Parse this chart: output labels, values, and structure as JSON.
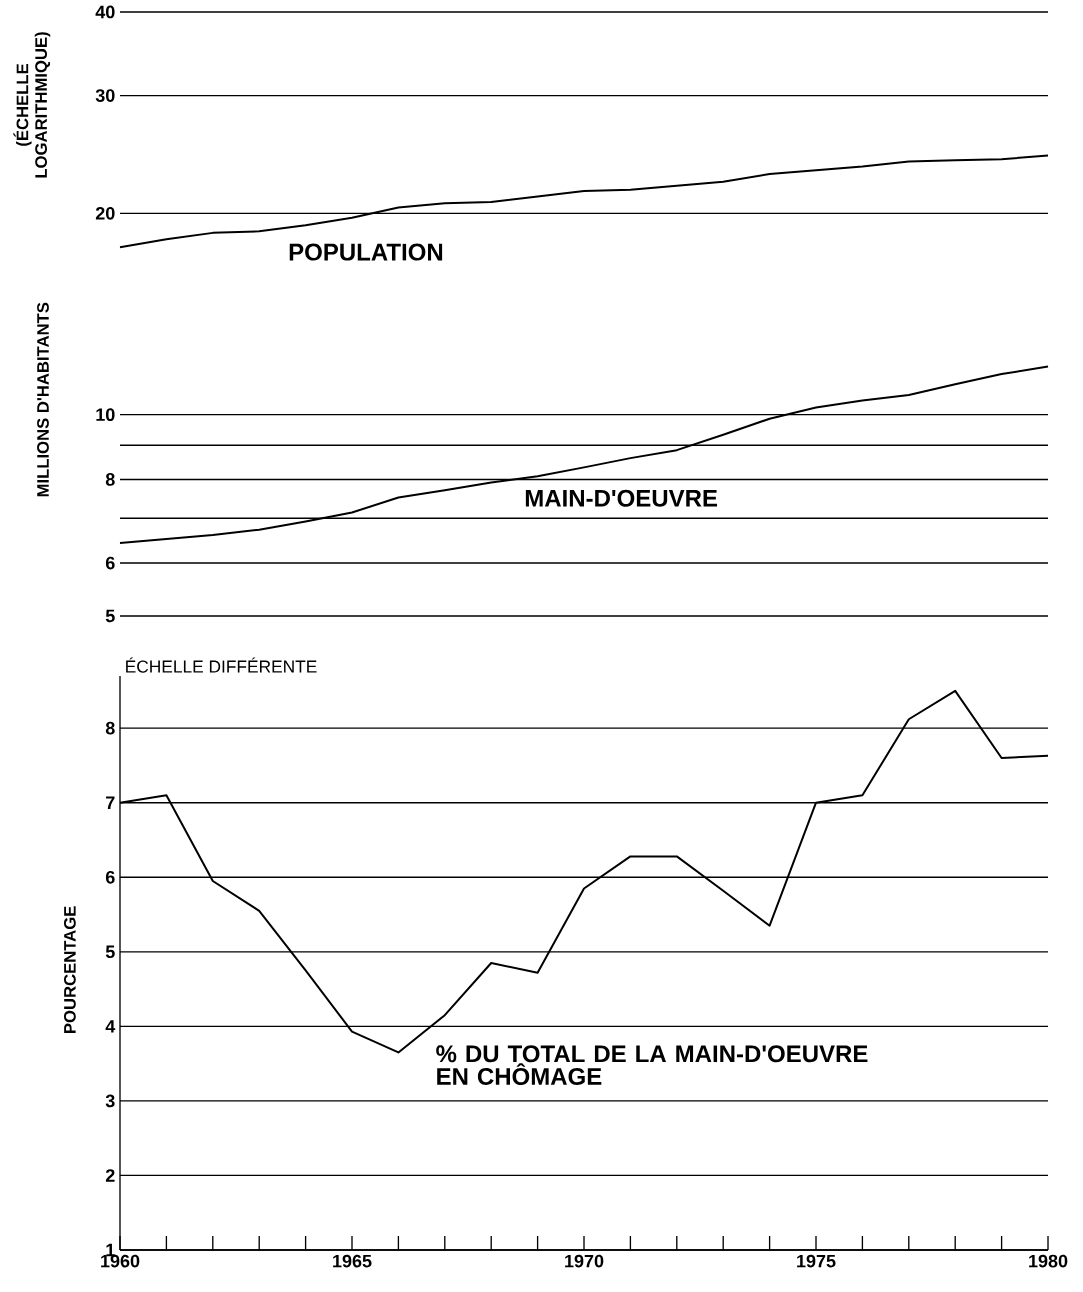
{
  "chart_data": [
    {
      "type": "line",
      "ylabel": "MILLIONS D'HABITANTS",
      "annotations": [
        "(ÉCHELLE LOGARITHMIQUE)"
      ],
      "log": "y",
      "grid": "y",
      "tick_labels": "y",
      "marker": "none",
      "line_style": "solid",
      "x": [
        1960,
        1961,
        1962,
        1963,
        1964,
        1965,
        1966,
        1967,
        1968,
        1969,
        1970,
        1971,
        1972,
        1973,
        1974,
        1975,
        1976,
        1977,
        1978,
        1979,
        1980
      ],
      "xlim": [
        1960,
        1980
      ],
      "ylim": [
        5,
        40
      ],
      "yticks": [
        5,
        6,
        {
          "value": 7,
          "label": null
        },
        8,
        {
          "value": 9,
          "label": null
        },
        10,
        20,
        30,
        40
      ],
      "series": [
        {
          "name": "POPULATION",
          "color": "#000000",
          "values": [
            17.8,
            18.3,
            18.7,
            18.8,
            19.2,
            19.7,
            20.4,
            20.7,
            20.8,
            21.2,
            21.6,
            21.7,
            22.0,
            22.3,
            22.9,
            23.2,
            23.5,
            23.9,
            24.0,
            24.1,
            24.4
          ]
        },
        {
          "name": "MAIN-D'OEUVRE",
          "color": "#000000",
          "values": [
            6.43,
            6.52,
            6.61,
            6.73,
            6.92,
            7.14,
            7.52,
            7.71,
            7.92,
            8.09,
            8.34,
            8.61,
            8.85,
            9.33,
            9.86,
            10.25,
            10.5,
            10.7,
            11.1,
            11.5,
            11.8
          ]
        }
      ]
    },
    {
      "type": "line",
      "title": "ÉCHELLE DIFFÉRENTE",
      "ylabel": "POURCENTAGE",
      "grid": "y",
      "marker": "none",
      "line_style": "solid",
      "x": [
        1960,
        1961,
        1962,
        1963,
        1964,
        1965,
        1966,
        1967,
        1968,
        1969,
        1970,
        1971,
        1972,
        1973,
        1974,
        1975,
        1976,
        1977,
        1978,
        1979,
        1980
      ],
      "xlim": [
        1960,
        1980
      ],
      "ylim": [
        1,
        8.7
      ],
      "xticks": [
        1960,
        {
          "value": 1961,
          "label": null
        },
        {
          "value": 1962,
          "label": null
        },
        {
          "value": 1963,
          "label": null
        },
        {
          "value": 1964,
          "label": null
        },
        1965,
        {
          "value": 1966,
          "label": null
        },
        {
          "value": 1967,
          "label": null
        },
        {
          "value": 1968,
          "label": null
        },
        {
          "value": 1969,
          "label": null
        },
        1970,
        {
          "value": 1971,
          "label": null
        },
        {
          "value": 1972,
          "label": null
        },
        {
          "value": 1973,
          "label": null
        },
        {
          "value": 1974,
          "label": null
        },
        1975,
        {
          "value": 1976,
          "label": null
        },
        {
          "value": 1977,
          "label": null
        },
        {
          "value": 1978,
          "label": null
        },
        {
          "value": 1979,
          "label": null
        },
        1980
      ],
      "yticks": [
        1,
        2,
        3,
        4,
        5,
        6,
        7,
        8
      ],
      "series": [
        {
          "name": "% DU TOTAL DE LA MAIN-D'OEUVRE EN CHÔMAGE",
          "color": "#000000",
          "values": [
            7.0,
            7.1,
            5.95,
            5.55,
            4.75,
            3.93,
            3.65,
            4.15,
            4.85,
            4.72,
            5.85,
            6.28,
            6.28,
            5.82,
            5.35,
            7.0,
            7.1,
            8.12,
            8.5,
            7.6,
            7.63
          ]
        }
      ]
    }
  ]
}
